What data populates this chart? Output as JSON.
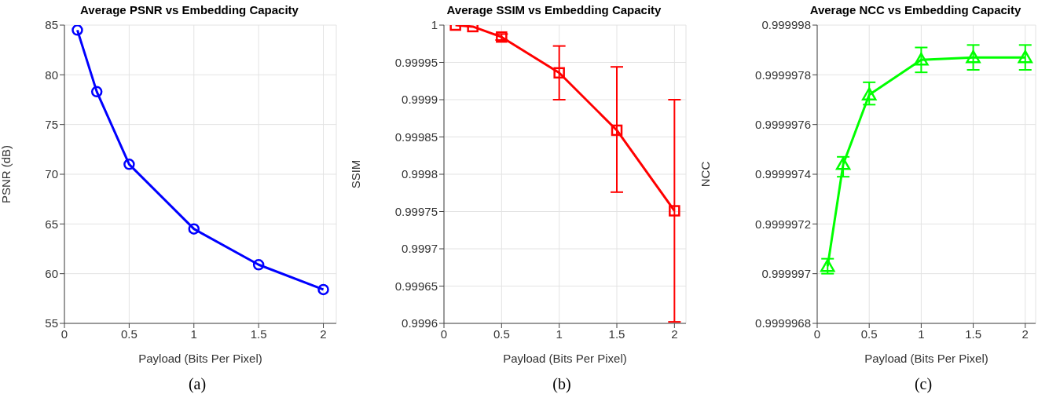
{
  "chart_data": [
    {
      "type": "line",
      "title": "Average PSNR vs Embedding Capacity",
      "xlabel": "Payload (Bits Per Pixel)",
      "ylabel": "PSNR (dB)",
      "annotations": [
        "(a)"
      ],
      "x": [
        0.1,
        0.25,
        0.5,
        1,
        1.5,
        2
      ],
      "xlim": [
        0,
        2.1
      ],
      "xticks": [
        0,
        0.5,
        1,
        1.5,
        2
      ],
      "ylim": [
        55,
        85
      ],
      "yticks": [
        55,
        60,
        65,
        70,
        75,
        80,
        85
      ],
      "grid": true,
      "marker": "circle",
      "line_style": "solid",
      "series": [
        {
          "color": "#0000ff",
          "values": [
            84.5,
            78.3,
            71.0,
            64.5,
            60.9,
            58.4
          ]
        }
      ]
    },
    {
      "type": "line",
      "title": "Average SSIM vs Embedding Capacity",
      "xlabel": "Payload (Bits Per Pixel)",
      "ylabel": "SSIM",
      "annotations": [
        "(b)"
      ],
      "x": [
        0.1,
        0.25,
        0.5,
        1,
        1.5,
        2
      ],
      "xlim": [
        0,
        2.1
      ],
      "xticks": [
        0,
        0.5,
        1,
        1.5,
        2
      ],
      "ylim": [
        0.9996,
        1
      ],
      "yticks": [
        0.9996,
        0.99965,
        0.9997,
        0.99975,
        0.9998,
        0.99985,
        0.9999,
        0.99995,
        1
      ],
      "grid": true,
      "marker": "square",
      "line_style": "solid",
      "series": [
        {
          "color": "#ff0000",
          "values": [
            1.0,
            0.999998,
            0.999984,
            0.999936,
            0.999859,
            0.999751
          ],
          "errors": [
            null,
            null,
            [
              0.99998,
              0.999988
            ],
            [
              0.9999,
              0.999972
            ],
            [
              0.999776,
              0.999944
            ],
            [
              0.999602,
              0.9999
            ]
          ]
        }
      ]
    },
    {
      "type": "line",
      "title": "Average NCC vs Embedding Capacity",
      "xlabel": "Payload (Bits Per Pixel)",
      "ylabel": "NCC",
      "annotations": [
        "(c)"
      ],
      "x": [
        0.1,
        0.25,
        0.5,
        1,
        1.5,
        2
      ],
      "xlim": [
        0,
        2.1
      ],
      "xticks": [
        0,
        0.5,
        1,
        1.5,
        2
      ],
      "ylim": [
        0.9999968,
        0.999998
      ],
      "yticks": [
        0.9999968,
        0.999997,
        0.9999972,
        0.9999974,
        0.9999976,
        0.9999978,
        0.999998
      ],
      "grid": true,
      "marker": "triangle",
      "line_style": "solid",
      "series": [
        {
          "color": "#00ff00",
          "values": [
            0.99999703,
            0.99999744,
            0.99999772,
            0.99999786,
            0.99999787,
            0.99999787
          ],
          "errors": [
            [
              0.999997,
              0.99999706
            ],
            [
              0.99999739,
              0.99999747
            ],
            [
              0.99999768,
              0.99999777
            ],
            [
              0.99999781,
              0.99999791
            ],
            [
              0.99999782,
              0.99999792
            ],
            [
              0.99999782,
              0.99999792
            ]
          ]
        }
      ]
    }
  ]
}
